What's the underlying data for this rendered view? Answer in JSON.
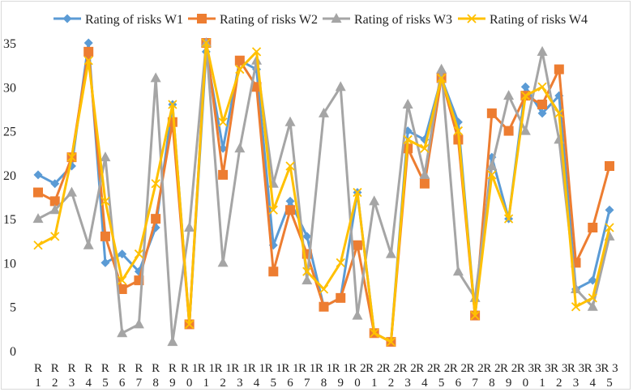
{
  "chart_data": {
    "type": "line",
    "title": "",
    "xlabel": "",
    "ylabel": "",
    "ylim": [
      0,
      35
    ],
    "yticks": [
      0,
      5,
      10,
      15,
      20,
      25,
      30,
      35
    ],
    "grid": false,
    "legend_position": "top",
    "categories": [
      "R1",
      "R2",
      "R3",
      "R4",
      "R5",
      "R6",
      "R7",
      "R8",
      "R9",
      "R10",
      "R11",
      "R12",
      "R13",
      "R14",
      "R15",
      "R16",
      "R17",
      "R18",
      "R19",
      "R20",
      "R21",
      "R22",
      "R23",
      "R24",
      "R25",
      "R26",
      "R27",
      "R28",
      "R29",
      "R30",
      "R31",
      "R32",
      "R33",
      "R34",
      "R35"
    ],
    "series": [
      {
        "name": "Rating of risks W1",
        "color": "#5b9bd5",
        "marker": "diamond",
        "values": [
          20,
          19,
          21,
          35,
          10,
          11,
          9,
          14,
          28,
          3,
          34,
          23,
          33,
          32,
          12,
          17,
          13,
          5,
          6,
          18,
          2,
          1,
          25,
          24,
          31,
          26,
          4,
          22,
          15,
          30,
          27,
          29,
          7,
          8,
          16
        ]
      },
      {
        "name": "Rating of risks W2",
        "color": "#ed7d31",
        "marker": "square",
        "values": [
          18,
          17,
          22,
          34,
          13,
          7,
          8,
          15,
          26,
          3,
          35,
          20,
          33,
          30,
          9,
          16,
          11,
          5,
          6,
          12,
          2,
          1,
          23,
          19,
          31,
          24,
          4,
          27,
          25,
          29,
          28,
          32,
          10,
          14,
          21
        ]
      },
      {
        "name": "Rating of risks W3",
        "color": "#a5a5a5",
        "marker": "triangle",
        "values": [
          15,
          16,
          18,
          12,
          22,
          2,
          3,
          31,
          1,
          14,
          35,
          10,
          23,
          33,
          19,
          26,
          8,
          27,
          30,
          4,
          17,
          11,
          28,
          20,
          32,
          9,
          6,
          21,
          29,
          25,
          34,
          24,
          7,
          5,
          13
        ]
      },
      {
        "name": "Rating of risks W4",
        "color": "#ffc000",
        "marker": "x",
        "values": [
          12,
          13,
          22,
          33,
          17,
          8,
          11,
          19,
          28,
          3,
          35,
          26,
          32,
          34,
          16,
          21,
          9,
          7,
          10,
          18,
          2,
          1,
          24,
          23,
          31,
          25,
          4,
          20,
          15,
          29,
          30,
          27,
          5,
          6,
          14
        ]
      }
    ]
  }
}
